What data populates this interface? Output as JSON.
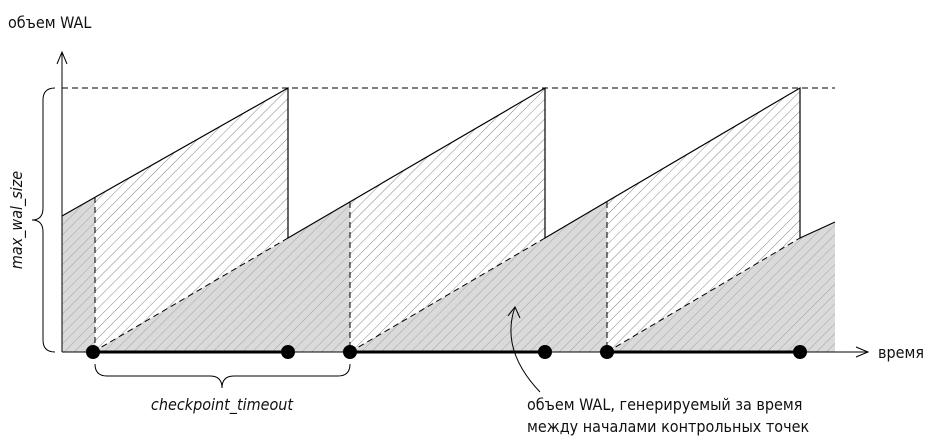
{
  "axes": {
    "y_label": "объем WAL",
    "x_label": "время"
  },
  "annotations": {
    "max_wal_size": "max_wal_size",
    "checkpoint_timeout": "checkpoint_timeout",
    "note": [
      "объем WAL, генерируемый за время",
      "между началами контрольных точек"
    ]
  }
}
